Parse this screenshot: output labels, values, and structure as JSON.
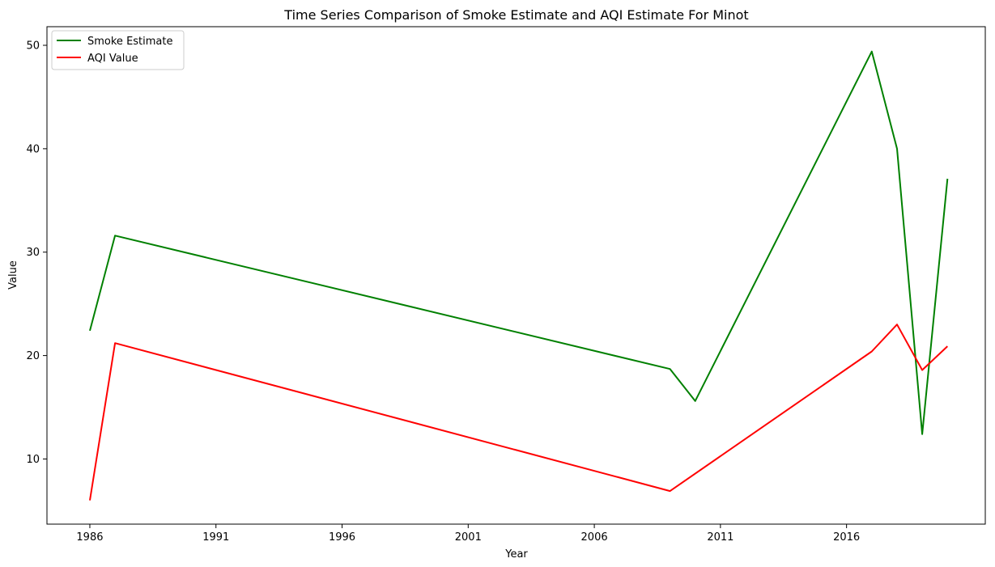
{
  "chart_data": {
    "type": "line",
    "title": "Time Series Comparison of Smoke Estimate and AQI Estimate For Minot",
    "xlabel": "Year",
    "ylabel": "Value",
    "xlim": [
      1984.3,
      2021.5
    ],
    "ylim": [
      3.7,
      51.8
    ],
    "xticks": [
      1986,
      1991,
      1996,
      2001,
      2006,
      2011,
      2016
    ],
    "yticks": [
      10,
      20,
      30,
      40,
      50
    ],
    "grid": false,
    "legend_position": "upper-left",
    "series": [
      {
        "name": "Smoke Estimate",
        "color": "#008000",
        "x": [
          1986,
          1987,
          2009,
          2010,
          2017,
          2018,
          2019,
          2020
        ],
        "y": [
          22.4,
          31.6,
          18.7,
          15.6,
          49.4,
          40.0,
          12.4,
          37.1
        ]
      },
      {
        "name": "AQI Value",
        "color": "#ff0000",
        "x": [
          1986,
          1987,
          2009,
          2017,
          2018,
          2019,
          2020
        ],
        "y": [
          6.0,
          21.2,
          6.9,
          20.4,
          23.0,
          18.6,
          20.9
        ]
      }
    ]
  }
}
